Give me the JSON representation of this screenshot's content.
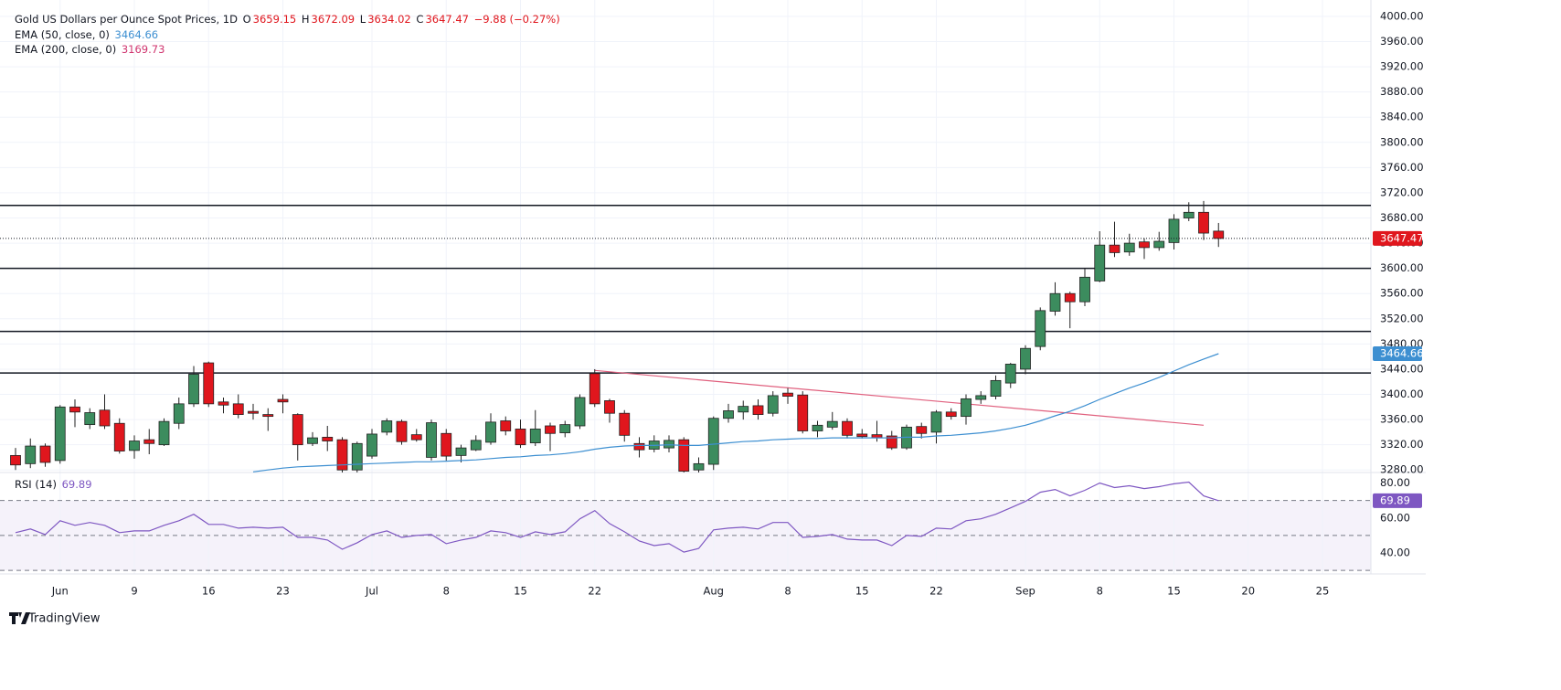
{
  "chart_data": {
    "type": "candlestick",
    "title": "Gold US Dollars per Ounce Spot Prices, 1D",
    "ohlc_letters": [
      "O",
      "H",
      "L",
      "C"
    ],
    "change_label": "−9.88 (−0.27%)",
    "categories": [
      null,
      null,
      null,
      "Jun",
      null,
      null,
      null,
      null,
      "9",
      null,
      null,
      null,
      null,
      "16",
      null,
      null,
      null,
      null,
      "23",
      null,
      null,
      null,
      null,
      null,
      "Jul",
      null,
      null,
      null,
      null,
      "8",
      null,
      null,
      null,
      null,
      "15",
      null,
      null,
      null,
      null,
      "22",
      null,
      null,
      null,
      null,
      null,
      null,
      null,
      "Aug",
      null,
      null,
      null,
      null,
      "8",
      null,
      null,
      null,
      null,
      "15",
      null,
      null,
      null,
      null,
      "22",
      null,
      null,
      null,
      null,
      null,
      "Sep",
      null,
      null,
      null,
      null,
      "8",
      null,
      null,
      null,
      null,
      "15",
      null,
      null,
      null,
      null,
      "20",
      null,
      null,
      null,
      null,
      "25",
      null
    ],
    "open": [
      3303,
      3290,
      3318,
      3295,
      3380,
      3352,
      3375,
      3354,
      3311,
      3328,
      3320,
      3354,
      3385,
      3450,
      3388,
      3385,
      3373,
      3368,
      3392,
      3368,
      3322,
      3332,
      3328,
      3280,
      3302,
      3340,
      3357,
      3336,
      3300,
      3338,
      3303,
      3312,
      3324,
      3358,
      3345,
      3323,
      3350,
      3339,
      3350,
      3433,
      3390,
      3370,
      3322,
      3313,
      3315,
      3328,
      3280,
      3289,
      3362,
      3372,
      3382,
      3370,
      3402,
      3399,
      3342,
      3348,
      3357,
      3337,
      3336,
      3334,
      3315,
      3349,
      3340,
      3372,
      3365,
      3392,
      3397,
      3418,
      3440,
      3476,
      3532,
      3560,
      3547,
      3580,
      3637,
      3626,
      3642,
      3633,
      3641,
      3680,
      3689,
      3659.15,
      null,
      null,
      null,
      null,
      null,
      null,
      null,
      null
    ],
    "high": [
      3315,
      3330,
      3322,
      3383,
      3392,
      3378,
      3400,
      3362,
      3335,
      3345,
      3362,
      3395,
      3445,
      3452,
      3395,
      3400,
      3385,
      3378,
      3400,
      3370,
      3340,
      3350,
      3332,
      3325,
      3345,
      3362,
      3360,
      3345,
      3360,
      3345,
      3320,
      3335,
      3370,
      3365,
      3360,
      3375,
      3355,
      3358,
      3400,
      3440,
      3393,
      3375,
      3332,
      3335,
      3335,
      3332,
      3300,
      3365,
      3385,
      3390,
      3392,
      3405,
      3410,
      3405,
      3358,
      3372,
      3362,
      3345,
      3358,
      3342,
      3352,
      3355,
      3375,
      3378,
      3400,
      3405,
      3430,
      3450,
      3478,
      3538,
      3578,
      3563,
      3600,
      3659,
      3674,
      3655,
      3648,
      3658,
      3686,
      3705,
      3707,
      3672.09,
      null,
      null,
      null,
      null,
      null,
      null,
      null,
      null
    ],
    "low": [
      3280,
      3283,
      3285,
      3290,
      3348,
      3345,
      3345,
      3306,
      3298,
      3305,
      3318,
      3345,
      3380,
      3380,
      3370,
      3362,
      3360,
      3342,
      3370,
      3295,
      3318,
      3310,
      3276,
      3276,
      3298,
      3335,
      3320,
      3325,
      3295,
      3295,
      3292,
      3310,
      3320,
      3335,
      3315,
      3318,
      3310,
      3332,
      3345,
      3380,
      3355,
      3325,
      3300,
      3308,
      3308,
      3276,
      3276,
      3280,
      3355,
      3360,
      3360,
      3365,
      3385,
      3338,
      3332,
      3344,
      3330,
      3330,
      3325,
      3312,
      3312,
      3330,
      3322,
      3360,
      3352,
      3385,
      3392,
      3410,
      3432,
      3470,
      3525,
      3505,
      3540,
      3578,
      3618,
      3620,
      3615,
      3628,
      3630,
      3675,
      3645,
      3634.02,
      null,
      null,
      null,
      null,
      null,
      null,
      null,
      null
    ],
    "close": [
      3288,
      3318,
      3292,
      3380,
      3372,
      3371,
      3350,
      3310,
      3326,
      3322,
      3357,
      3385,
      3432,
      3385,
      3383,
      3368,
      3370,
      3365,
      3388,
      3320,
      3331,
      3326,
      3280,
      3322,
      3337,
      3358,
      3325,
      3328,
      3355,
      3302,
      3315,
      3327,
      3356,
      3342,
      3320,
      3345,
      3338,
      3352,
      3395,
      3385,
      3370,
      3335,
      3312,
      3326,
      3327,
      3278,
      3290,
      3362,
      3374,
      3381,
      3368,
      3398,
      3397,
      3342,
      3351,
      3357,
      3335,
      3333,
      3331,
      3315,
      3348,
      3338,
      3372,
      3365,
      3393,
      3398,
      3422,
      3448,
      3473,
      3533,
      3560,
      3547,
      3586,
      3637,
      3625,
      3640,
      3633,
      3643,
      3678,
      3689,
      3656,
      3647.47,
      null,
      null,
      null,
      null,
      null,
      null,
      null,
      null
    ],
    "up_color": "#3c8c5e",
    "down_color": "#e0161d",
    "overlays": [
      {
        "name": "EMA (50, close, 0)",
        "color": "#3d8fd1",
        "values": [
          null,
          null,
          null,
          null,
          null,
          null,
          null,
          null,
          null,
          null,
          null,
          null,
          null,
          null,
          null,
          null,
          3277,
          3280,
          3283,
          3285,
          3286,
          3287,
          3288,
          3289,
          3290,
          3291,
          3292,
          3293,
          3293,
          3294,
          3295,
          3296,
          3298,
          3300,
          3301,
          3303,
          3304,
          3306,
          3309,
          3313,
          3316,
          3318,
          3319,
          3319,
          3320,
          3319,
          3319,
          3321,
          3323,
          3325,
          3326,
          3328,
          3329,
          3330,
          3330,
          3331,
          3331,
          3331,
          3331,
          3331,
          3332,
          3332,
          3334,
          3335,
          3337,
          3339,
          3342,
          3346,
          3351,
          3358,
          3366,
          3373,
          3382,
          3392,
          3401,
          3410,
          3418,
          3427,
          3437,
          3447,
          3456,
          3464.66,
          null,
          null,
          null,
          null,
          null,
          null,
          null,
          null
        ]
      },
      {
        "name": "EMA (200, close, 0)",
        "color": "#d0356f",
        "last_value": 3169.73
      }
    ],
    "ylim": [
      3276,
      4026
    ],
    "yticks": [
      {
        "value": 3280,
        "label": "3280.00"
      },
      {
        "value": 3320,
        "label": "3320.00"
      },
      {
        "value": 3360,
        "label": "3360.00"
      },
      {
        "value": 3400,
        "label": "3400.00"
      },
      {
        "value": 3440,
        "label": "3440.00"
      },
      {
        "value": 3480,
        "label": "3480.00"
      },
      {
        "value": 3520,
        "label": "3520.00"
      },
      {
        "value": 3560,
        "label": "3560.00"
      },
      {
        "value": 3600,
        "label": "3600.00"
      },
      {
        "value": 3640,
        "label": "3640.00"
      },
      {
        "value": 3680,
        "label": "3680.00"
      },
      {
        "value": 3720,
        "label": "3720.00"
      },
      {
        "value": 3760,
        "label": "3760.00"
      },
      {
        "value": 3800,
        "label": "3800.00"
      },
      {
        "value": 3840,
        "label": "3840.00"
      },
      {
        "value": 3880,
        "label": "3880.00"
      },
      {
        "value": 3920,
        "label": "3920.00"
      },
      {
        "value": 3960,
        "label": "3960.00"
      },
      {
        "value": 4000,
        "label": "4000.00"
      }
    ],
    "grid": true,
    "levels": [
      3700,
      3600,
      3500,
      3434
    ],
    "trendline": {
      "x": [
        39,
        80
      ],
      "y": [
        3438,
        3351
      ],
      "color": "#e0607e"
    },
    "rsi": {
      "name": "RSI (14)",
      "color": "#7e57c2",
      "values": [
        51.6,
        53.7,
        50.5,
        58.4,
        55.8,
        57.4,
        55.8,
        51.6,
        52.6,
        52.6,
        55.8,
        58.4,
        62.1,
        56.3,
        56.3,
        54.2,
        54.7,
        54.2,
        54.7,
        48.9,
        48.9,
        47.4,
        42.1,
        45.8,
        50.5,
        52.6,
        48.9,
        50,
        50.5,
        45.3,
        47.4,
        48.9,
        52.6,
        51.6,
        48.9,
        52.1,
        50.5,
        52.1,
        59.5,
        64.2,
        56.8,
        52.1,
        46.8,
        44.2,
        45.3,
        40.5,
        42.6,
        53.2,
        54.2,
        54.7,
        53.7,
        57.4,
        57.4,
        48.9,
        49.5,
        50.5,
        47.9,
        47.4,
        47.4,
        44.2,
        50,
        49.5,
        54.2,
        53.7,
        58.4,
        59.5,
        62.1,
        65.8,
        69.5,
        74.7,
        76.3,
        72.6,
        75.8,
        80,
        77.4,
        78.4,
        76.8,
        77.9,
        79.5,
        80.5,
        72.6,
        69.89,
        null,
        null,
        null,
        null,
        null,
        null,
        null,
        null
      ],
      "ylim": [
        28,
        86
      ],
      "yticks": [
        {
          "value": 40,
          "label": "40.00"
        },
        {
          "value": 60,
          "label": "60.00"
        },
        {
          "value": 80,
          "label": "80.00"
        }
      ],
      "levels": [
        70,
        50,
        30
      ]
    }
  },
  "footer": {
    "brand": "TradingView"
  }
}
